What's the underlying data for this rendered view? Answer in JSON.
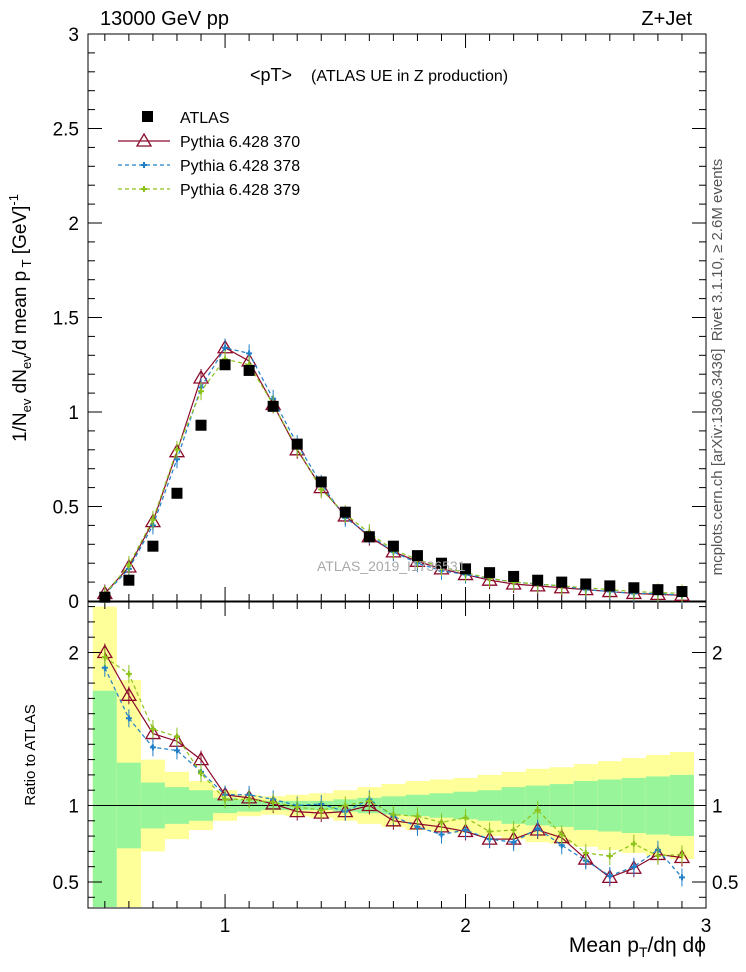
{
  "header": {
    "left": "13000 GeV pp",
    "right": "Z+Jet",
    "title_main": "<pT>",
    "title_sub": "(ATLAS UE in Z production)"
  },
  "side_labels": {
    "top": "Rivet 3.1.10, ≥ 2.6M events",
    "bottom": "mcplots.cern.ch [arXiv:1306.3436]"
  },
  "watermark": "ATLAS_2019_I1736531",
  "colors": {
    "atlas": "#000000",
    "p370": "#8b0a2a",
    "p378": "#1f7fc8",
    "p379": "#8cc21b",
    "band_inner": "#99f599",
    "band_outer": "#ffff99"
  },
  "chart_data": [
    {
      "type": "scatter",
      "panel": "main",
      "xlabel": "Mean p_T/dη dϕ",
      "ylabel": "1/N_ev dN_ev/d mean p_T [GeV]^-1",
      "xlim": [
        0.43,
        3.0
      ],
      "ylim": [
        0,
        3
      ],
      "x_ticks": [
        "1",
        "2",
        "3"
      ],
      "y_ticks": [
        "0",
        "0.5",
        "1",
        "1.5",
        "2",
        "2.5",
        "3"
      ],
      "x": [
        0.5,
        0.6,
        0.7,
        0.8,
        0.9,
        1.0,
        1.1,
        1.2,
        1.3,
        1.4,
        1.5,
        1.6,
        1.7,
        1.8,
        1.9,
        2.0,
        2.1,
        2.2,
        2.3,
        2.4,
        2.5,
        2.6,
        2.7,
        2.8,
        2.9
      ],
      "series": [
        {
          "name": "ATLAS",
          "values": [
            0.02,
            0.11,
            0.29,
            0.57,
            0.93,
            1.25,
            1.22,
            1.03,
            0.83,
            0.63,
            0.47,
            0.34,
            0.29,
            0.24,
            0.2,
            0.17,
            0.15,
            0.13,
            0.11,
            0.1,
            0.09,
            0.08,
            0.07,
            0.06,
            0.05
          ]
        },
        {
          "name": "Pythia 6.428 370",
          "values": [
            0.04,
            0.18,
            0.42,
            0.79,
            1.18,
            1.34,
            1.27,
            1.04,
            0.8,
            0.6,
            0.45,
            0.34,
            0.26,
            0.21,
            0.17,
            0.14,
            0.11,
            0.09,
            0.08,
            0.07,
            0.06,
            0.05,
            0.04,
            0.035,
            0.03
          ]
        },
        {
          "name": "Pythia 6.428 378",
          "values": [
            0.035,
            0.17,
            0.4,
            0.75,
            1.13,
            1.34,
            1.31,
            1.07,
            0.83,
            0.62,
            0.44,
            0.35,
            0.26,
            0.2,
            0.16,
            0.14,
            0.12,
            0.1,
            0.09,
            0.08,
            0.06,
            0.05,
            0.04,
            0.04,
            0.03
          ]
        },
        {
          "name": "Pythia 6.428 379",
          "values": [
            0.035,
            0.19,
            0.43,
            0.8,
            1.11,
            1.28,
            1.25,
            1.04,
            0.81,
            0.59,
            0.46,
            0.36,
            0.27,
            0.22,
            0.18,
            0.15,
            0.12,
            0.1,
            0.09,
            0.08,
            0.07,
            0.06,
            0.05,
            0.045,
            0.04
          ]
        }
      ]
    },
    {
      "type": "line",
      "panel": "ratio",
      "xlabel": "Mean p_T/dη dϕ",
      "ylabel": "Ratio to ATLAS",
      "xlim": [
        0.43,
        3.0
      ],
      "ylim": [
        0.33,
        2.33
      ],
      "y_ticks": [
        "0.5",
        "1",
        "2"
      ],
      "x": [
        0.5,
        0.6,
        0.7,
        0.8,
        0.9,
        1.0,
        1.1,
        1.2,
        1.3,
        1.4,
        1.5,
        1.6,
        1.7,
        1.8,
        1.9,
        2.0,
        2.1,
        2.2,
        2.3,
        2.4,
        2.5,
        2.6,
        2.7,
        2.8,
        2.9
      ],
      "series": [
        {
          "name": "Pythia 6.428 370",
          "values": [
            2.0,
            1.72,
            1.47,
            1.42,
            1.3,
            1.07,
            1.05,
            1.01,
            0.96,
            0.95,
            0.96,
            1.0,
            0.9,
            0.88,
            0.86,
            0.83,
            0.78,
            0.78,
            0.84,
            0.79,
            0.65,
            0.53,
            0.59,
            0.68,
            0.66
          ]
        },
        {
          "name": "Pythia 6.428 378",
          "values": [
            1.9,
            1.57,
            1.38,
            1.36,
            1.22,
            1.07,
            1.07,
            1.04,
            1.0,
            1.01,
            0.96,
            1.04,
            0.93,
            0.86,
            0.81,
            0.84,
            0.78,
            0.76,
            0.85,
            0.74,
            0.64,
            0.54,
            0.6,
            0.71,
            0.53
          ]
        },
        {
          "name": "Pythia 6.428 379",
          "values": [
            1.97,
            1.86,
            1.5,
            1.45,
            1.21,
            1.04,
            1.04,
            1.02,
            0.99,
            0.97,
            1.0,
            1.03,
            0.94,
            0.93,
            0.89,
            0.92,
            0.83,
            0.84,
            0.97,
            0.81,
            0.69,
            0.67,
            0.75,
            0.67,
            0.68
          ]
        }
      ],
      "band_inner_half": [
        0.75,
        0.28,
        0.15,
        0.12,
        0.1,
        0.05,
        0.04,
        0.03,
        0.03,
        0.03,
        0.04,
        0.05,
        0.06,
        0.07,
        0.08,
        0.09,
        0.1,
        0.12,
        0.13,
        0.14,
        0.16,
        0.17,
        0.18,
        0.19,
        0.2
      ],
      "band_outer_half": [
        1.3,
        0.82,
        0.3,
        0.22,
        0.16,
        0.1,
        0.07,
        0.06,
        0.07,
        0.08,
        0.1,
        0.12,
        0.14,
        0.16,
        0.17,
        0.18,
        0.2,
        0.22,
        0.24,
        0.25,
        0.27,
        0.29,
        0.31,
        0.33,
        0.35
      ]
    }
  ]
}
